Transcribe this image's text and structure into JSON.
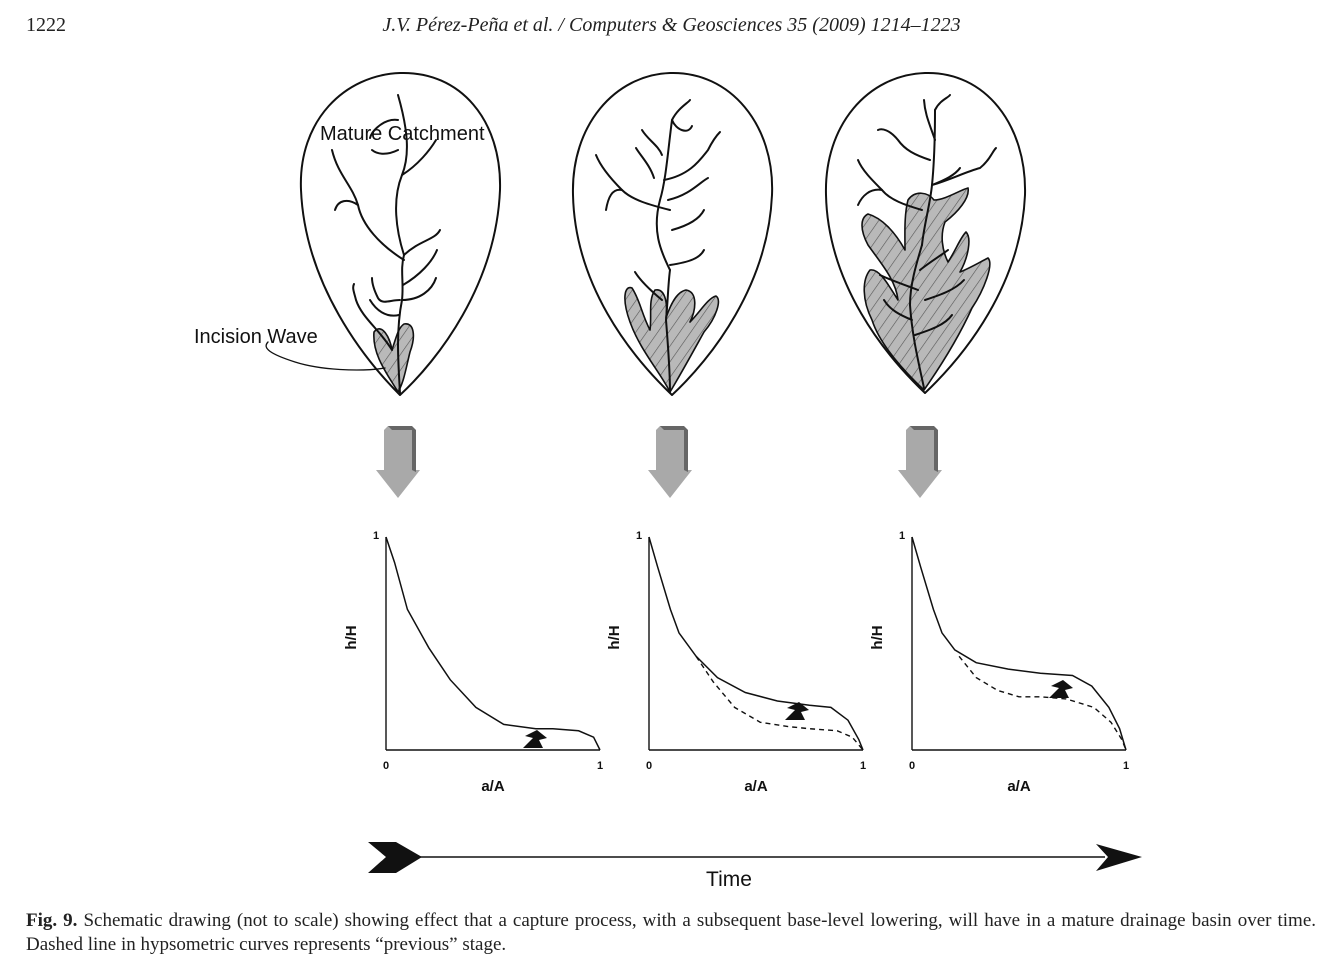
{
  "header": {
    "page_number": "1222",
    "running_head": "J.V. Pérez-Peña et al. / Computers & Geosciences 35 (2009) 1214–1223"
  },
  "figure": {
    "labels": {
      "mature_catchment": "Mature Catchment",
      "incision_wave": "Incision Wave",
      "time": "Time"
    },
    "panels": [
      {
        "xlabel": "a/A",
        "ylabel": "h/H",
        "x_ticks": [
          "0",
          "1"
        ],
        "y_ticks": [
          "1"
        ],
        "curve": [
          [
            0,
            1
          ],
          [
            0.04,
            0.88
          ],
          [
            0.1,
            0.66
          ],
          [
            0.2,
            0.48
          ],
          [
            0.3,
            0.33
          ],
          [
            0.42,
            0.2
          ],
          [
            0.55,
            0.12
          ],
          [
            0.7,
            0.1
          ],
          [
            0.78,
            0.1
          ],
          [
            0.9,
            0.09
          ],
          [
            0.97,
            0.06
          ],
          [
            1,
            0
          ]
        ],
        "previous": []
      },
      {
        "xlabel": "a/A",
        "ylabel": "h/H",
        "x_ticks": [
          "0",
          "1"
        ],
        "y_ticks": [
          "1"
        ],
        "curve": [
          [
            0,
            1
          ],
          [
            0.04,
            0.86
          ],
          [
            0.1,
            0.66
          ],
          [
            0.14,
            0.55
          ],
          [
            0.22,
            0.44
          ],
          [
            0.32,
            0.34
          ],
          [
            0.45,
            0.27
          ],
          [
            0.6,
            0.23
          ],
          [
            0.75,
            0.21
          ],
          [
            0.85,
            0.2
          ],
          [
            0.93,
            0.14
          ],
          [
            0.98,
            0.05
          ],
          [
            1,
            0
          ]
        ],
        "previous": [
          [
            0.22,
            0.44
          ],
          [
            0.3,
            0.32
          ],
          [
            0.4,
            0.2
          ],
          [
            0.52,
            0.13
          ],
          [
            0.65,
            0.11
          ],
          [
            0.75,
            0.1
          ],
          [
            0.88,
            0.09
          ],
          [
            0.95,
            0.06
          ],
          [
            1,
            0
          ]
        ]
      },
      {
        "xlabel": "a/A",
        "ylabel": "h/H",
        "x_ticks": [
          "0",
          "1"
        ],
        "y_ticks": [
          "1"
        ],
        "curve": [
          [
            0,
            1
          ],
          [
            0.04,
            0.86
          ],
          [
            0.1,
            0.66
          ],
          [
            0.14,
            0.55
          ],
          [
            0.2,
            0.47
          ],
          [
            0.3,
            0.41
          ],
          [
            0.45,
            0.38
          ],
          [
            0.6,
            0.36
          ],
          [
            0.75,
            0.35
          ],
          [
            0.84,
            0.3
          ],
          [
            0.92,
            0.2
          ],
          [
            0.97,
            0.1
          ],
          [
            1,
            0
          ]
        ],
        "previous": [
          [
            0.22,
            0.44
          ],
          [
            0.3,
            0.34
          ],
          [
            0.4,
            0.28
          ],
          [
            0.5,
            0.25
          ],
          [
            0.6,
            0.25
          ],
          [
            0.72,
            0.24
          ],
          [
            0.85,
            0.2
          ],
          [
            0.93,
            0.13
          ],
          [
            0.98,
            0.05
          ],
          [
            1,
            0
          ]
        ]
      }
    ]
  },
  "caption": {
    "label": "Fig. 9.",
    "text": " Schematic drawing (not to scale) showing effect that a capture process, with a subsequent base-level lowering, will have in a mature drainage basin over time. Dashed line in hypsometric curves represents “previous” stage."
  },
  "colors": {
    "line": "#111111",
    "hatch_fill": "#b9b9b9",
    "arrow_fill": "#a9a9a9",
    "arrow_shadow": "#666666"
  }
}
